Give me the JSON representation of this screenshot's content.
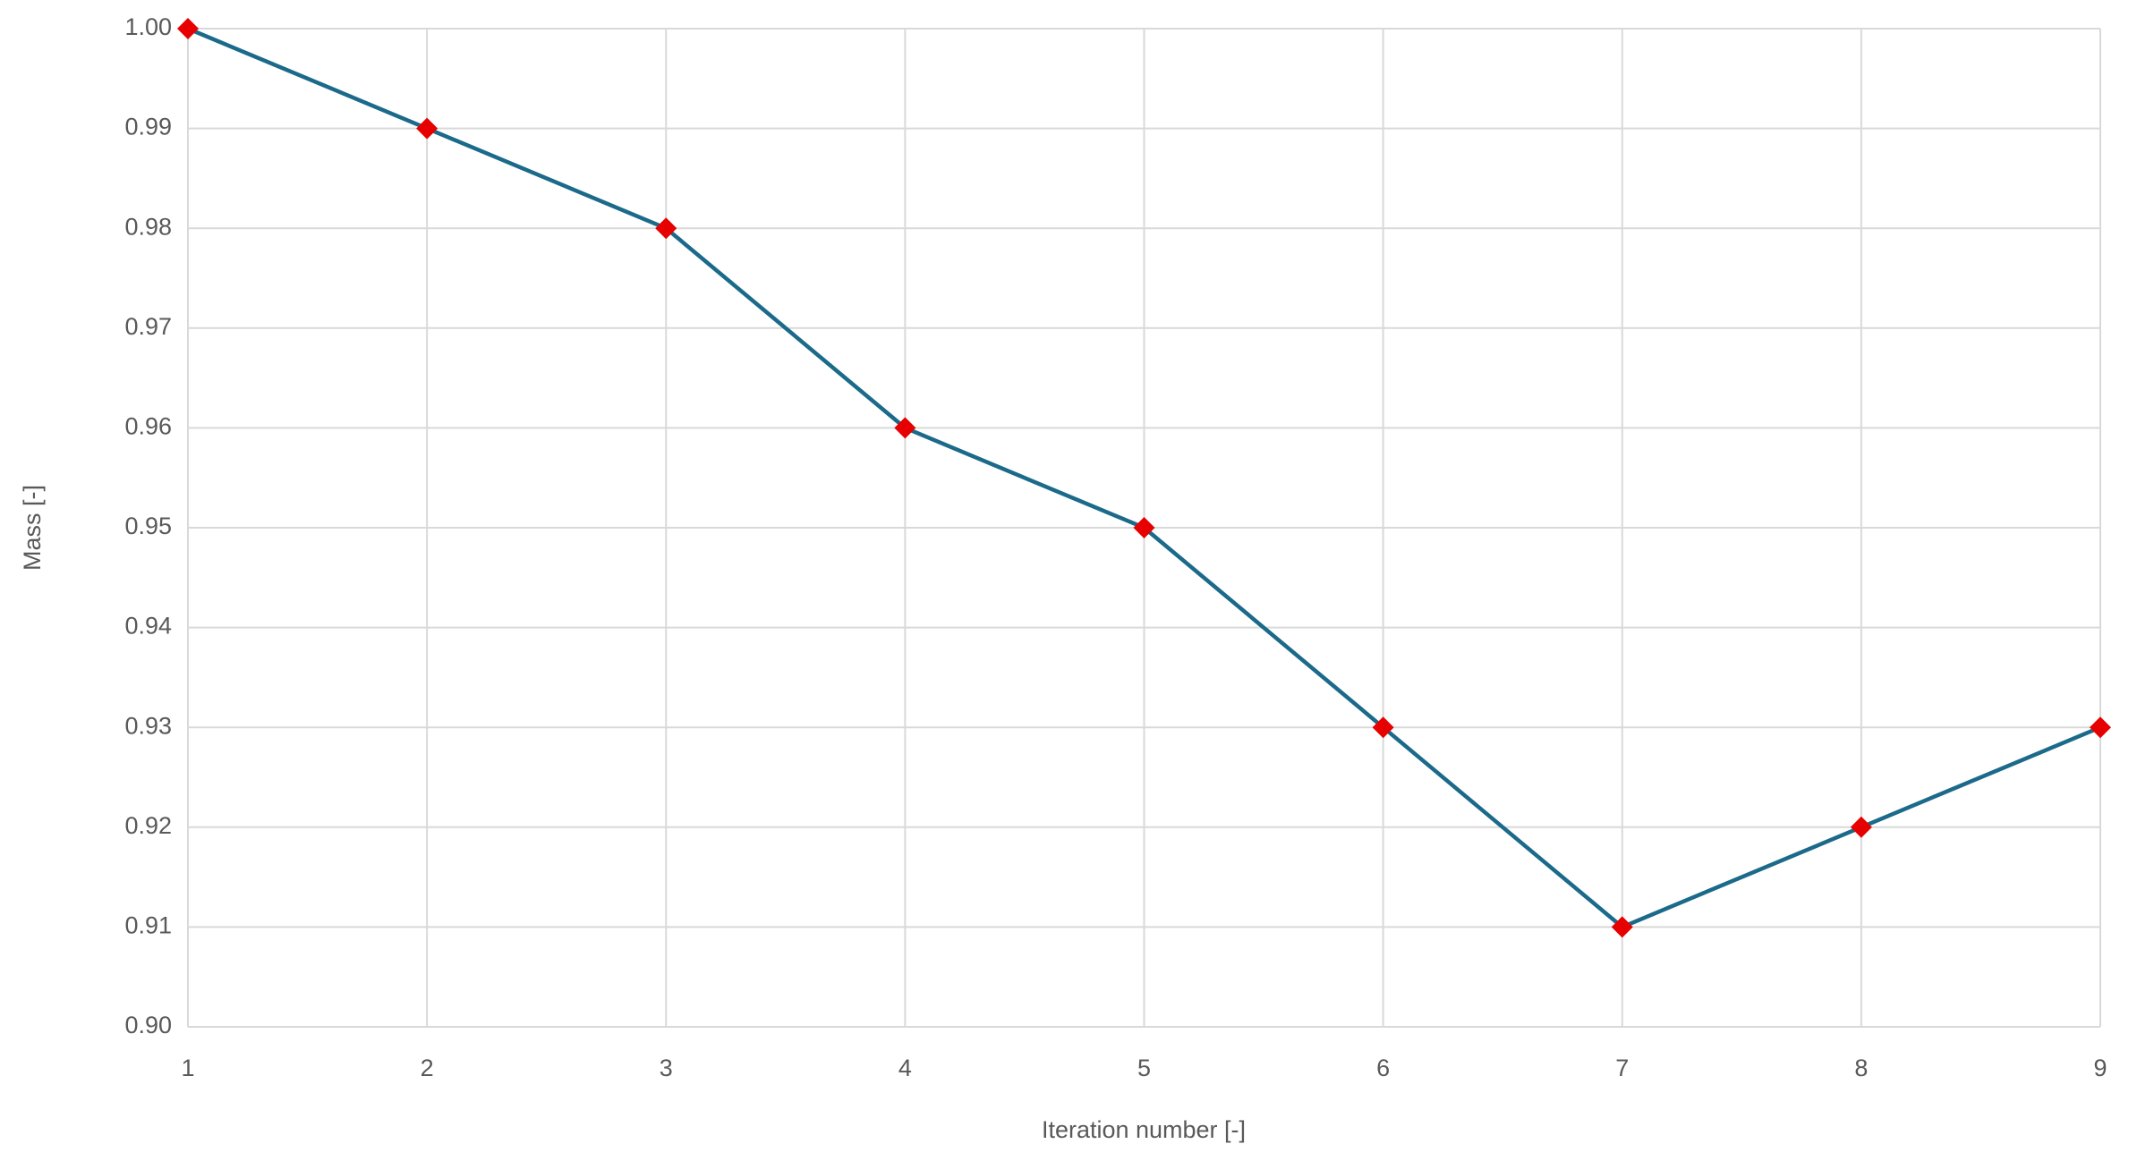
{
  "chart_data": {
    "type": "line",
    "x_label": "Iteration number [-]",
    "y_label": "Mass [-]",
    "x": [
      1,
      2,
      3,
      4,
      5,
      6,
      7,
      8,
      9
    ],
    "series": [
      {
        "name": "Mass",
        "color": "#1b6a8a",
        "marker_color": "#e60000",
        "values": [
          1.0,
          0.99,
          0.98,
          0.96,
          0.95,
          0.93,
          0.91,
          0.92,
          0.93
        ]
      }
    ],
    "xlim": [
      1,
      9
    ],
    "xticks": [
      1,
      2,
      3,
      4,
      5,
      6,
      7,
      8,
      9
    ],
    "ylim": [
      0.9,
      1.0
    ],
    "yticks": [
      {
        "value": 0.9,
        "label": "0.90"
      },
      0.91,
      0.92,
      0.93,
      0.94,
      0.95,
      0.96,
      0.97,
      0.98,
      0.99,
      {
        "value": 1,
        "label": "1.00"
      }
    ],
    "grid": true
  }
}
